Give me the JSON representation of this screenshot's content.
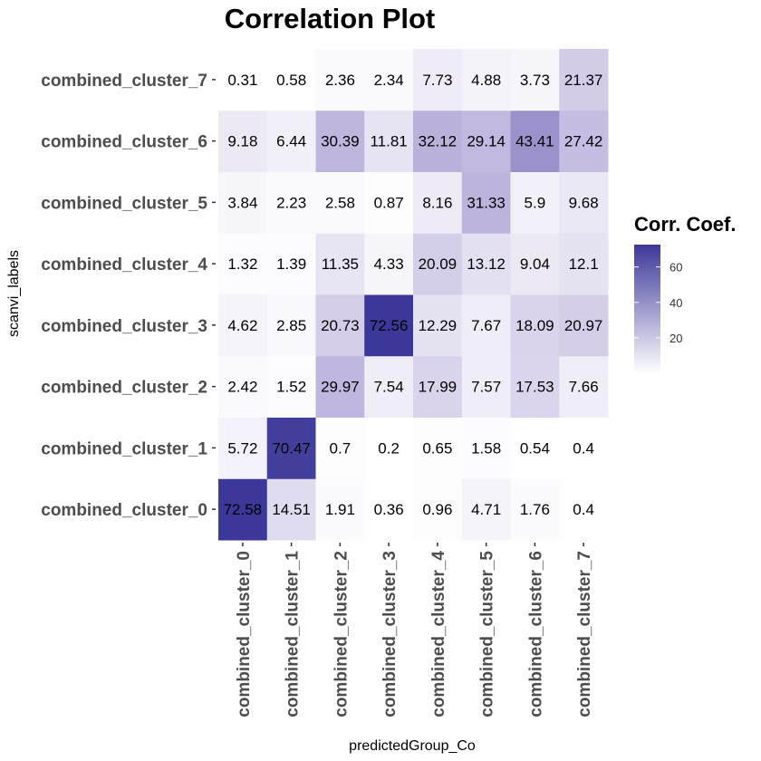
{
  "chart_data": {
    "type": "heatmap",
    "title": "Correlation Plot",
    "xlabel": "predictedGroup_Co",
    "ylabel": "scanvi_labels",
    "x_categories": [
      "combined_cluster_0",
      "combined_cluster_1",
      "combined_cluster_2",
      "combined_cluster_3",
      "combined_cluster_4",
      "combined_cluster_5",
      "combined_cluster_6",
      "combined_cluster_7"
    ],
    "y_categories": [
      "combined_cluster_0",
      "combined_cluster_1",
      "combined_cluster_2",
      "combined_cluster_3",
      "combined_cluster_4",
      "combined_cluster_5",
      "combined_cluster_6",
      "combined_cluster_7"
    ],
    "values": [
      [
        72.58,
        14.51,
        1.91,
        0.36,
        0.96,
        4.71,
        1.76,
        0.4
      ],
      [
        5.72,
        70.47,
        0.7,
        0.2,
        0.65,
        1.58,
        0.54,
        0.4
      ],
      [
        2.42,
        1.52,
        29.97,
        7.54,
        17.99,
        7.57,
        17.53,
        7.66
      ],
      [
        4.62,
        2.85,
        20.73,
        72.56,
        12.29,
        7.67,
        18.09,
        20.97
      ],
      [
        1.32,
        1.39,
        11.35,
        4.33,
        20.09,
        13.12,
        9.04,
        12.1
      ],
      [
        3.84,
        2.23,
        2.58,
        0.87,
        8.16,
        31.33,
        5.9,
        9.68
      ],
      [
        9.18,
        6.44,
        30.39,
        11.81,
        32.12,
        29.14,
        43.41,
        27.42
      ],
      [
        0.31,
        0.58,
        2.36,
        2.34,
        7.73,
        4.88,
        3.73,
        21.37
      ]
    ],
    "legend": {
      "title": "Corr. Coef.",
      "ticks": [
        20,
        40,
        60
      ],
      "range": [
        0,
        72.6
      ],
      "low_color": "#ffffff",
      "high_color": "#3c3899",
      "placement": "right"
    }
  }
}
